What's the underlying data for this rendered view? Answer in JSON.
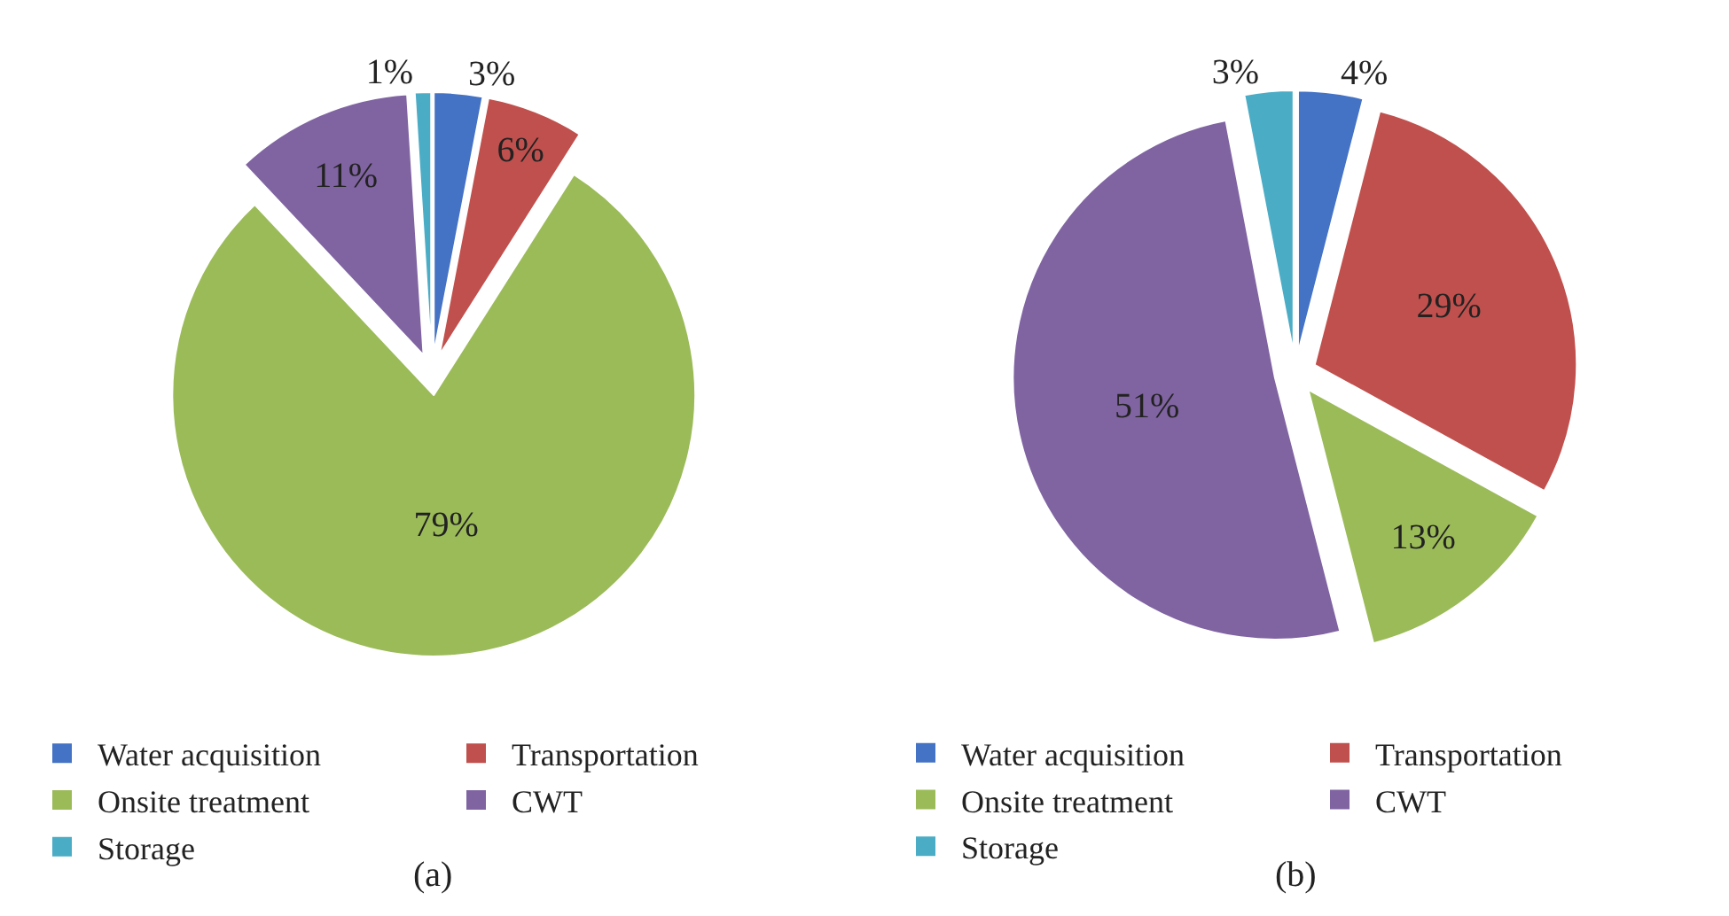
{
  "chart_data": [
    {
      "type": "pie",
      "categories": [
        "Water acquisition",
        "Transportation",
        "Onsite treatment",
        "CWT",
        "Storage"
      ],
      "values": [
        3,
        6,
        79,
        11,
        1
      ],
      "value_labels": [
        "3%",
        "6%",
        "79%",
        "11%",
        "1%"
      ],
      "colors": [
        "#4472c4",
        "#c0504d",
        "#9bbb59",
        "#8064a2",
        "#4bacc6"
      ],
      "legend": "bottom",
      "annotations": [
        "(a)"
      ]
    },
    {
      "type": "pie",
      "categories": [
        "Water acquisition",
        "Transportation",
        "Onsite treatment",
        "CWT",
        "Storage"
      ],
      "values": [
        4,
        29,
        13,
        51,
        3
      ],
      "value_labels": [
        "4%",
        "29%",
        "13%",
        "51%",
        "3%"
      ],
      "colors": [
        "#4472c4",
        "#c0504d",
        "#9bbb59",
        "#8064a2",
        "#4bacc6"
      ],
      "legend": "bottom",
      "annotations": [
        "(b)"
      ]
    }
  ]
}
